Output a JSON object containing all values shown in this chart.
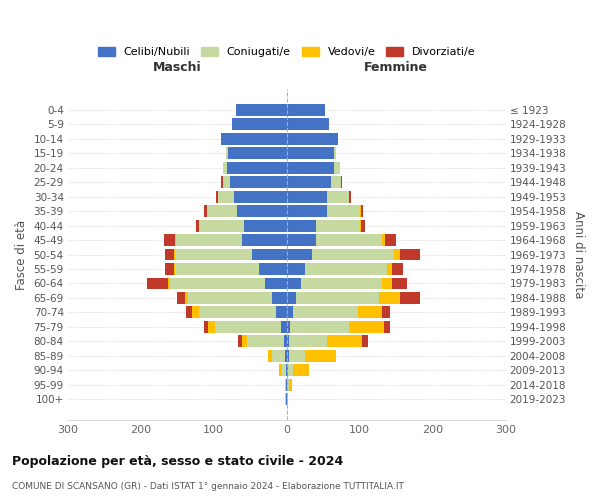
{
  "age_groups": [
    "0-4",
    "5-9",
    "10-14",
    "15-19",
    "20-24",
    "25-29",
    "30-34",
    "35-39",
    "40-44",
    "45-49",
    "50-54",
    "55-59",
    "60-64",
    "65-69",
    "70-74",
    "75-79",
    "80-84",
    "85-89",
    "90-94",
    "95-99",
    "100+"
  ],
  "birth_years": [
    "2019-2023",
    "2014-2018",
    "2009-2013",
    "2004-2008",
    "1999-2003",
    "1994-1998",
    "1989-1993",
    "1984-1988",
    "1979-1983",
    "1974-1978",
    "1969-1973",
    "1964-1968",
    "1959-1963",
    "1954-1958",
    "1949-1953",
    "1944-1948",
    "1939-1943",
    "1934-1938",
    "1929-1933",
    "1924-1928",
    "≤ 1923"
  ],
  "male": {
    "celibi": [
      70,
      75,
      90,
      80,
      82,
      78,
      72,
      68,
      58,
      62,
      48,
      38,
      30,
      20,
      15,
      8,
      4,
      2,
      1,
      1,
      1
    ],
    "coniugati": [
      0,
      0,
      0,
      3,
      5,
      10,
      22,
      42,
      62,
      90,
      105,
      115,
      130,
      115,
      105,
      90,
      50,
      18,
      6,
      2,
      1
    ],
    "vedovi": [
      0,
      0,
      0,
      0,
      0,
      0,
      0,
      0,
      0,
      1,
      2,
      2,
      3,
      5,
      10,
      10,
      8,
      6,
      3,
      0,
      0
    ],
    "divorziati": [
      0,
      0,
      0,
      0,
      0,
      2,
      3,
      3,
      5,
      15,
      12,
      12,
      28,
      10,
      8,
      5,
      5,
      0,
      0,
      0,
      0
    ]
  },
  "female": {
    "nubili": [
      52,
      58,
      70,
      65,
      65,
      60,
      55,
      55,
      40,
      40,
      35,
      25,
      20,
      12,
      8,
      5,
      3,
      3,
      2,
      1,
      1
    ],
    "coniugate": [
      0,
      0,
      0,
      3,
      8,
      15,
      30,
      45,
      60,
      90,
      112,
      112,
      110,
      115,
      90,
      80,
      52,
      22,
      6,
      2,
      1
    ],
    "vedove": [
      0,
      0,
      0,
      0,
      0,
      0,
      1,
      2,
      2,
      5,
      8,
      8,
      15,
      28,
      32,
      48,
      48,
      42,
      22,
      4,
      0
    ],
    "divorziate": [
      0,
      0,
      0,
      0,
      0,
      1,
      2,
      3,
      5,
      15,
      28,
      15,
      20,
      28,
      12,
      8,
      8,
      0,
      0,
      0,
      0
    ]
  },
  "colors": {
    "celibi": "#4472c4",
    "coniugati": "#c5d9a0",
    "vedovi": "#ffc000",
    "divorziati": "#c0392b"
  },
  "xlim": 300,
  "title": "Popolazione per età, sesso e stato civile - 2024",
  "subtitle": "COMUNE DI SCANSANO (GR) - Dati ISTAT 1° gennaio 2024 - Elaborazione TUTTITALIA.IT",
  "legend_labels": [
    "Celibi/Nubili",
    "Coniugati/e",
    "Vedovi/e",
    "Divorziati/e"
  ],
  "xlabel_left": "Maschi",
  "xlabel_right": "Femmine",
  "ylabel_left": "Fasce di età",
  "ylabel_right": "Anni di nascita",
  "bg_color": "#ffffff"
}
